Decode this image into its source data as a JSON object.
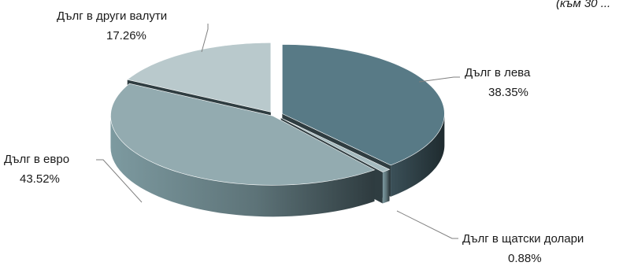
{
  "chart_data": {
    "type": "pie",
    "style": "3d-exploded",
    "subtitle": "(към 30 ...",
    "slices": [
      {
        "name": "Дълг в лева",
        "value": 38.35,
        "label": "38.35%",
        "color": "#587a86"
      },
      {
        "name": "Дълг в щатски долари",
        "value": 0.88,
        "label": "0.88%",
        "color": "#a6bcc0"
      },
      {
        "name": "Дълг в евро",
        "value": 43.52,
        "label": "43.52%",
        "color": "#93abb0"
      },
      {
        "name": "Дълг в други валути",
        "value": 17.26,
        "label": "17.26%",
        "color": "#b9c9cc"
      }
    ],
    "legend": "none"
  }
}
